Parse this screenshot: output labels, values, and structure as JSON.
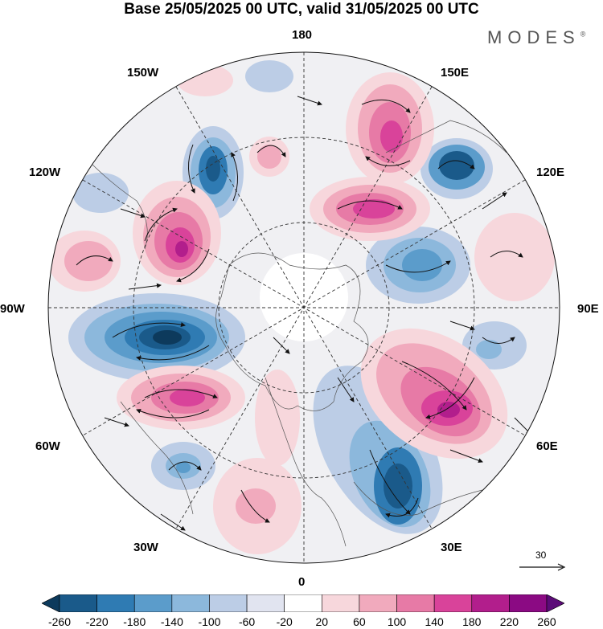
{
  "title": "Base 25/05/2025 00 UTC, valid 31/05/2025 00 UTC",
  "brand": "MODES",
  "brand_mark": "®",
  "longitude_labels": {
    "n": "180",
    "s": "0",
    "w": "90W",
    "e": "90E",
    "nw1": "150W",
    "nw2": "120W",
    "ne1": "150E",
    "ne2": "120E",
    "sw1": "60W",
    "sw2": "30W",
    "se1": "60E",
    "se2": "30E"
  },
  "reference_vector": {
    "value": "30"
  },
  "colorbar": {
    "ticks": [
      "-260",
      "-220",
      "-180",
      "-140",
      "-100",
      "-60",
      "-20",
      "20",
      "60",
      "100",
      "140",
      "180",
      "220",
      "260"
    ],
    "colors": [
      "#0d3a5c",
      "#1a5a8a",
      "#2f7bb3",
      "#5b9ccb",
      "#8cb8dc",
      "#bccde6",
      "#e1e4f0",
      "#ffffff",
      "#f7d7dc",
      "#f1aabd",
      "#e77aa6",
      "#d9439a",
      "#b21e8c",
      "#8b0a83",
      "#5c0b78"
    ]
  },
  "field_colors": {
    "land_outline": "#555555",
    "grid": "#333333",
    "arrows": "#111111"
  }
}
